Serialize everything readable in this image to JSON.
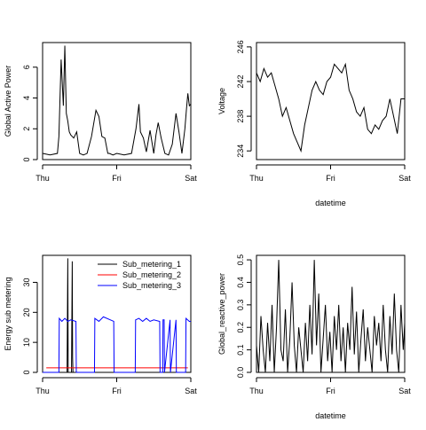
{
  "chart_data": [
    {
      "type": "line",
      "title": "",
      "xlabel": "",
      "ylabel": "Global Active Power",
      "categories": [
        "Thu",
        "Fri",
        "Sat"
      ],
      "xlim": [
        0,
        2
      ],
      "ylim": [
        0,
        7.6
      ],
      "yticks": [
        0,
        2,
        4,
        6
      ],
      "series": [
        {
          "color": "#000000",
          "x": [
            0,
            0.1,
            0.2,
            0.22,
            0.25,
            0.28,
            0.3,
            0.32,
            0.34,
            0.36,
            0.38,
            0.42,
            0.46,
            0.5,
            0.55,
            0.6,
            0.66,
            0.72,
            0.76,
            0.8,
            0.84,
            0.88,
            0.9,
            0.95,
            1.0,
            1.1,
            1.2,
            1.26,
            1.3,
            1.32,
            1.36,
            1.4,
            1.45,
            1.5,
            1.53,
            1.56,
            1.6,
            1.65,
            1.7,
            1.75,
            1.8,
            1.84,
            1.88,
            1.92,
            1.94,
            1.96,
            1.98,
            2.0
          ],
          "values": [
            0.4,
            0.3,
            0.4,
            1.5,
            6.5,
            3.5,
            7.4,
            3.0,
            2.5,
            1.8,
            1.6,
            1.4,
            1.8,
            0.4,
            0.3,
            0.4,
            1.5,
            3.2,
            2.8,
            1.5,
            1.4,
            0.4,
            0.4,
            0.3,
            0.4,
            0.3,
            0.4,
            2.0,
            3.6,
            1.8,
            1.4,
            0.5,
            1.9,
            0.4,
            1.6,
            2.4,
            1.4,
            0.4,
            0.3,
            1.0,
            3.0,
            1.8,
            0.4,
            2.0,
            3.2,
            4.3,
            3.5,
            3.6
          ]
        }
      ]
    },
    {
      "type": "line",
      "title": "",
      "xlabel": "datetime",
      "ylabel": "Voltage",
      "categories": [
        "Thu",
        "Fri",
        "Sat"
      ],
      "xlim": [
        0,
        2
      ],
      "ylim": [
        233,
        246.5
      ],
      "yticks": [
        234,
        238,
        242,
        246
      ],
      "series": [
        {
          "color": "#000000",
          "x": [
            0,
            0.05,
            0.1,
            0.15,
            0.2,
            0.25,
            0.3,
            0.35,
            0.4,
            0.45,
            0.5,
            0.55,
            0.6,
            0.65,
            0.7,
            0.75,
            0.8,
            0.85,
            0.9,
            0.95,
            1.0,
            1.05,
            1.1,
            1.15,
            1.2,
            1.25,
            1.3,
            1.35,
            1.4,
            1.45,
            1.5,
            1.55,
            1.6,
            1.65,
            1.7,
            1.75,
            1.8,
            1.85,
            1.9,
            1.95,
            2.0
          ],
          "values": [
            243,
            242,
            243.5,
            242.5,
            243,
            241.5,
            240,
            238,
            239,
            237.5,
            236,
            235,
            234,
            237,
            239,
            241,
            242,
            241,
            240.5,
            242,
            242.5,
            244,
            243.5,
            243,
            244,
            241,
            240,
            238.5,
            238,
            239,
            236.5,
            236,
            237,
            236.5,
            237.5,
            238,
            240,
            238,
            236,
            240,
            240
          ]
        }
      ]
    },
    {
      "type": "line",
      "title": "",
      "xlabel": "",
      "ylabel": "Energy sub metering",
      "categories": [
        "Thu",
        "Fri",
        "Sat"
      ],
      "xlim": [
        0,
        2
      ],
      "ylim": [
        0,
        39
      ],
      "yticks": [
        0,
        10,
        20,
        30
      ],
      "legend": "top-right",
      "legend_labels": [
        "Sub_metering_1",
        "Sub_metering_2",
        "Sub_metering_3"
      ],
      "series": [
        {
          "name": "Sub_metering_1",
          "color": "#000000",
          "x": [
            0,
            0.33,
            0.34,
            0.345,
            0.35,
            0.39,
            0.4,
            0.405,
            0.41,
            2.0
          ],
          "values": [
            0,
            0,
            38,
            0,
            0,
            0,
            37,
            5,
            0,
            0
          ]
        },
        {
          "name": "Sub_metering_2",
          "color": "#ff0000",
          "x": [
            0.05,
            0.06,
            0.15,
            0.16,
            0.25,
            0.26,
            0.35,
            0.36,
            0.45,
            0.46,
            0.55,
            0.56,
            0.65,
            0.66,
            0.75,
            0.76,
            0.85,
            0.86,
            0.95,
            0.96,
            1.05,
            1.06,
            1.15,
            1.16,
            1.25,
            1.26,
            1.35,
            1.36,
            1.45,
            1.46,
            1.55,
            1.56,
            1.65,
            1.66,
            1.75,
            1.76,
            1.85,
            1.86,
            1.95,
            1.96
          ],
          "values": [
            1.5,
            1.5,
            1.5,
            1.5,
            1.5,
            1.5,
            1.5,
            1.5,
            1.5,
            1.5,
            1.5,
            1.5,
            1.5,
            1.5,
            1.5,
            1.5,
            1.5,
            1.5,
            1.5,
            1.5,
            1.5,
            1.5,
            1.5,
            1.5,
            1.5,
            1.5,
            1.5,
            1.5,
            1.5,
            1.5,
            1.5,
            1.5,
            1.5,
            1.5,
            1.5,
            1.5,
            1.5,
            1.5,
            1.5,
            1.5
          ]
        },
        {
          "name": "Sub_metering_3",
          "color": "#0000ff",
          "x": [
            0,
            0.22,
            0.225,
            0.26,
            0.3,
            0.34,
            0.38,
            0.45,
            0.455,
            0.7,
            0.705,
            0.76,
            0.82,
            0.96,
            0.965,
            1.25,
            1.255,
            1.3,
            1.35,
            1.4,
            1.45,
            1.5,
            1.58,
            1.585,
            1.62,
            1.625,
            1.64,
            1.645,
            1.72,
            1.725,
            1.8,
            1.805,
            1.93,
            1.935,
            1.98,
            2.0
          ],
          "values": [
            0,
            0,
            18,
            17,
            18,
            17,
            17.5,
            17,
            0,
            0,
            18,
            17,
            18.5,
            17,
            0,
            0,
            17.5,
            18,
            17,
            18,
            17,
            17.5,
            17,
            0,
            0,
            17.5,
            17.5,
            0,
            17.5,
            0,
            17.5,
            0,
            0,
            18,
            17,
            17
          ]
        }
      ]
    },
    {
      "type": "line",
      "title": "",
      "xlabel": "datetime",
      "ylabel": "Global_reactive_power",
      "categories": [
        "Thu",
        "Fri",
        "Sat"
      ],
      "xlim": [
        0,
        2
      ],
      "ylim": [
        0,
        0.52
      ],
      "yticks": [
        0.0,
        0.1,
        0.2,
        0.3,
        0.4,
        0.5
      ],
      "series": [
        {
          "color": "#000000",
          "x": [
            0,
            0.03,
            0.06,
            0.09,
            0.12,
            0.15,
            0.18,
            0.21,
            0.24,
            0.27,
            0.3,
            0.33,
            0.36,
            0.39,
            0.42,
            0.45,
            0.48,
            0.51,
            0.54,
            0.57,
            0.6,
            0.63,
            0.66,
            0.69,
            0.72,
            0.75,
            0.78,
            0.81,
            0.84,
            0.87,
            0.9,
            0.93,
            0.96,
            0.99,
            1.02,
            1.05,
            1.08,
            1.11,
            1.14,
            1.17,
            1.2,
            1.23,
            1.26,
            1.29,
            1.32,
            1.35,
            1.38,
            1.41,
            1.44,
            1.47,
            1.5,
            1.53,
            1.56,
            1.59,
            1.62,
            1.65,
            1.68,
            1.71,
            1.74,
            1.77,
            1.8,
            1.83,
            1.86,
            1.89,
            1.92,
            1.95,
            1.98,
            2.0
          ],
          "values": [
            0.12,
            0.0,
            0.25,
            0.1,
            0.0,
            0.22,
            0.05,
            0.3,
            0.0,
            0.2,
            0.5,
            0.1,
            0.05,
            0.28,
            0.0,
            0.15,
            0.4,
            0.12,
            0.0,
            0.2,
            0.1,
            0.0,
            0.22,
            0.05,
            0.3,
            0.08,
            0.5,
            0.12,
            0.35,
            0.0,
            0.15,
            0.3,
            0.05,
            0.18,
            0.0,
            0.25,
            0.1,
            0.3,
            0.05,
            0.2,
            0.0,
            0.22,
            0.1,
            0.38,
            0.08,
            0.27,
            0.0,
            0.15,
            0.28,
            0.05,
            0.2,
            0.1,
            0.0,
            0.25,
            0.12,
            0.22,
            0.05,
            0.3,
            0.1,
            0.0,
            0.25,
            0.08,
            0.35,
            0.1,
            0.0,
            0.3,
            0.1,
            0.22
          ]
        }
      ]
    }
  ]
}
